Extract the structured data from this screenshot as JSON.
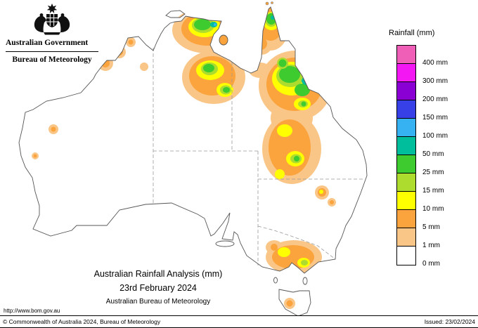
{
  "header": {
    "gov_title": "Australian Government",
    "bureau_title": "Bureau of Meteorology"
  },
  "legend": {
    "title": "Rainfall (mm)",
    "palette": {
      "pink": "#EF5FB7",
      "magenta": "#F318F3",
      "purple": "#8A00D4",
      "blue": "#3640E6",
      "lblue": "#36B2F2",
      "teal": "#00BE9B",
      "green": "#3DCB2F",
      "ygreen": "#AEDC2E",
      "yellow": "#FFFF00",
      "orange": "#FBA33C",
      "tan": "#FAC687",
      "white": "#FFFFFF"
    },
    "entries": [
      {
        "label": "400 mm",
        "color": "pink"
      },
      {
        "label": "300 mm",
        "color": "magenta"
      },
      {
        "label": "200 mm",
        "color": "purple"
      },
      {
        "label": "150 mm",
        "color": "blue"
      },
      {
        "label": "100 mm",
        "color": "lblue"
      },
      {
        "label": "50 mm",
        "color": "teal"
      },
      {
        "label": "25 mm",
        "color": "green"
      },
      {
        "label": "15 mm",
        "color": "ygreen"
      },
      {
        "label": "10 mm",
        "color": "yellow"
      },
      {
        "label": "5 mm",
        "color": "orange"
      },
      {
        "label": "1 mm",
        "color": "tan"
      },
      {
        "label": "0 mm",
        "color": "white"
      }
    ]
  },
  "caption": {
    "line1": "Australian Rainfall Analysis (mm)",
    "line2": "23rd February 2024",
    "line3": "Australian Bureau of Meteorology"
  },
  "footer": {
    "url": "http://www.bom.gov.au",
    "copyright": "© Commonwealth of Australia 2024, Bureau of Meteorology",
    "issued": "Issued: 23/02/2024"
  }
}
